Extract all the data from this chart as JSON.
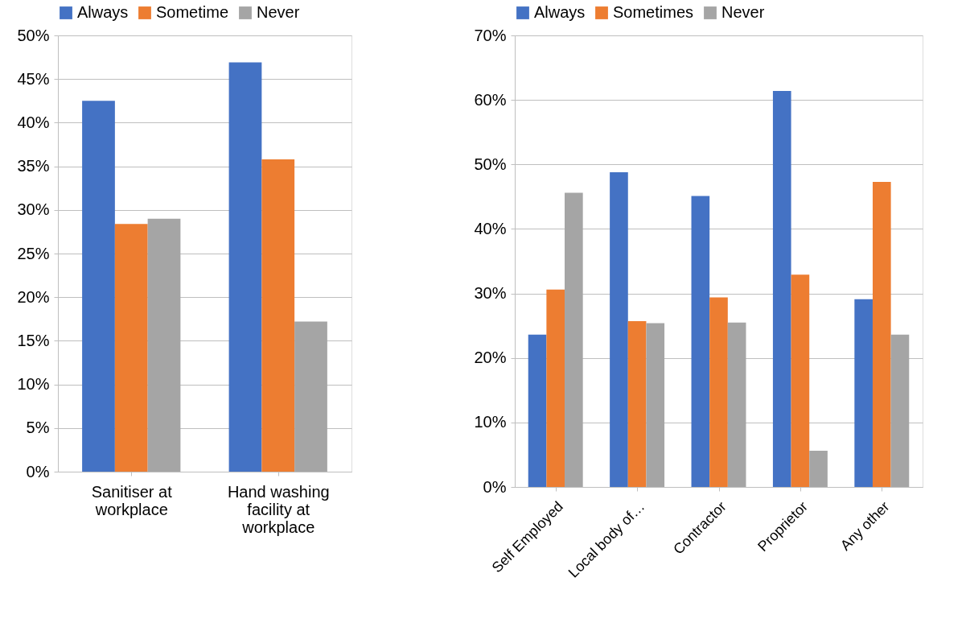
{
  "chart_data": [
    {
      "type": "bar",
      "categories": [
        "Sanitiser at workplace",
        "Hand washing facility at workplace"
      ],
      "series": [
        {
          "name": "Always",
          "color": "#4472c4",
          "values": [
            42.5,
            46.9
          ]
        },
        {
          "name": "Sometime",
          "color": "#ed7d31",
          "values": [
            28.4,
            35.8
          ]
        },
        {
          "name": "Never",
          "color": "#a5a5a5",
          "values": [
            29.0,
            17.2
          ]
        }
      ],
      "ylim": [
        0,
        50
      ],
      "yticks": [
        {
          "value": 0,
          "label": "0%"
        },
        {
          "value": 5,
          "label": "5%"
        },
        {
          "value": 10,
          "label": "10%"
        },
        {
          "value": 15,
          "label": "15%"
        },
        {
          "value": 20,
          "label": "20%"
        },
        {
          "value": 25,
          "label": "25%"
        },
        {
          "value": 30,
          "label": "30%"
        },
        {
          "value": 35,
          "label": "35%"
        },
        {
          "value": 40,
          "label": "40%"
        },
        {
          "value": 45,
          "label": "45%"
        },
        {
          "value": 50,
          "label": "50%"
        }
      ],
      "grid": "y",
      "legend": "top"
    },
    {
      "type": "bar",
      "categories": [
        "Self Employed",
        "Local body of…",
        "Contractor",
        "Proprietor",
        "Any other"
      ],
      "series": [
        {
          "name": "Always",
          "color": "#4472c4",
          "values": [
            23.6,
            48.8,
            45.1,
            61.4,
            29.1
          ]
        },
        {
          "name": "Sometimes",
          "color": "#ed7d31",
          "values": [
            30.6,
            25.7,
            29.4,
            32.9,
            47.3
          ]
        },
        {
          "name": "Never",
          "color": "#a5a5a5",
          "values": [
            45.6,
            25.4,
            25.5,
            5.6,
            23.6
          ]
        }
      ],
      "ylim": [
        0,
        70
      ],
      "yticks": [
        {
          "value": 0,
          "label": "0%"
        },
        {
          "value": 10,
          "label": "10%"
        },
        {
          "value": 20,
          "label": "20%"
        },
        {
          "value": 30,
          "label": "30%"
        },
        {
          "value": 40,
          "label": "40%"
        },
        {
          "value": 50,
          "label": "50%"
        },
        {
          "value": 60,
          "label": "60%"
        },
        {
          "value": 70,
          "label": "70%"
        }
      ],
      "grid": "y",
      "legend": "top"
    }
  ]
}
